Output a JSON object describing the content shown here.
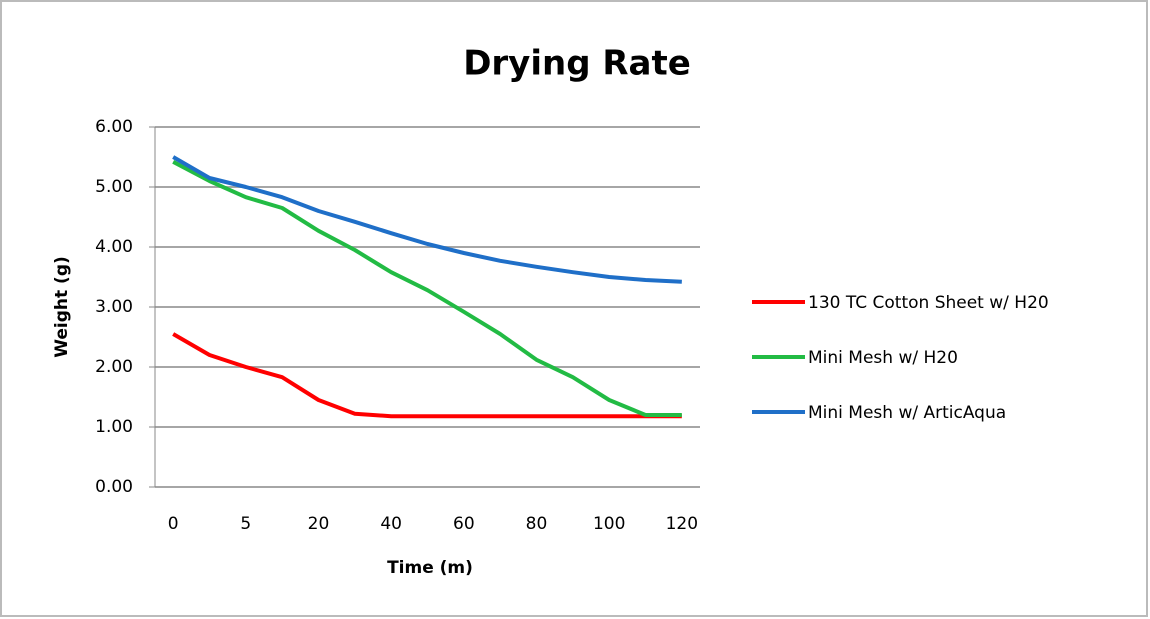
{
  "chart_data": {
    "type": "line",
    "title": "Drying Rate",
    "x_label": "Time (m)",
    "y_label": "Weight (g)",
    "categories": [
      "0",
      null,
      "5",
      null,
      "20",
      null,
      "40",
      null,
      "60",
      null,
      "80",
      null,
      "100",
      null,
      "120"
    ],
    "series": [
      {
        "name": "130 TC Cotton Sheet w/ H20",
        "color": "#ff0000",
        "values": [
          2.55,
          2.2,
          2.0,
          1.83,
          1.45,
          1.22,
          1.18,
          1.18,
          1.18,
          1.18,
          1.18,
          1.18,
          1.18,
          1.18,
          1.18
        ]
      },
      {
        "name": "Mini Mesh w/ H20",
        "color": "#22bb44",
        "values": [
          5.42,
          5.1,
          4.83,
          4.65,
          4.27,
          3.95,
          3.58,
          3.28,
          2.92,
          2.55,
          2.12,
          1.83,
          1.45,
          1.2,
          1.2
        ]
      },
      {
        "name": "Mini Mesh w/ ArticAqua",
        "color": "#1f6fc8",
        "values": [
          5.5,
          5.15,
          5.0,
          4.83,
          4.6,
          4.42,
          4.23,
          4.05,
          3.9,
          3.77,
          3.67,
          3.58,
          3.5,
          3.45,
          3.42
        ]
      }
    ],
    "ylim": [
      0,
      6
    ],
    "yticks": [
      {
        "value": 0,
        "label": "0.00"
      },
      {
        "value": 1,
        "label": "1.00"
      },
      {
        "value": 2,
        "label": "2.00"
      },
      {
        "value": 3,
        "label": "3.00"
      },
      {
        "value": 4,
        "label": "4.00"
      },
      {
        "value": 5,
        "label": "5.00"
      },
      {
        "value": 6,
        "label": "6.00"
      }
    ],
    "grid": true,
    "legend": "right"
  }
}
